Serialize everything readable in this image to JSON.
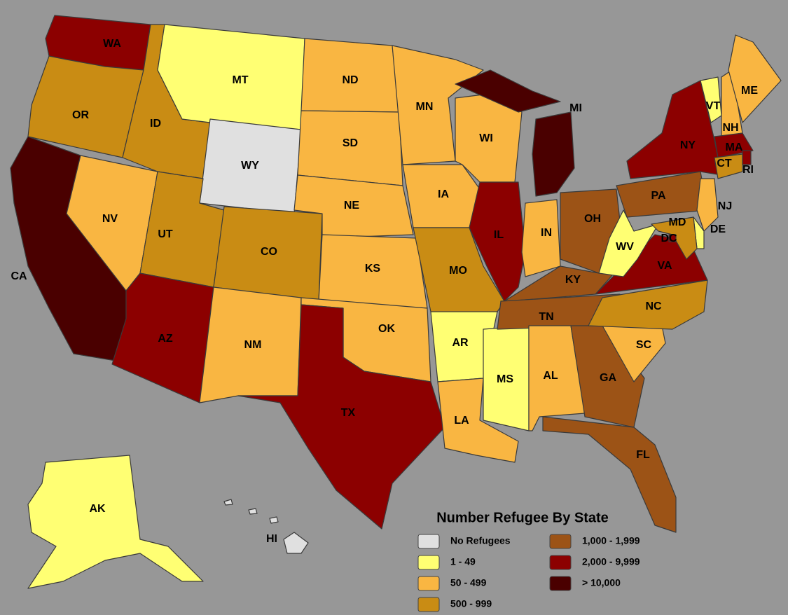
{
  "legend": {
    "title": "Number Refugee By State",
    "items": [
      {
        "label": "No Refugees",
        "color": "#e0e0e0"
      },
      {
        "label": "1 - 49",
        "color": "#ffff73"
      },
      {
        "label": "50 - 499",
        "color": "#f9b642"
      },
      {
        "label": "500 - 999",
        "color": "#c98c14"
      },
      {
        "label": "1,000 - 1,999",
        "color": "#9c5316"
      },
      {
        "label": "2,000 - 9,999",
        "color": "#8c0000"
      },
      {
        "label": "> 10,000",
        "color": "#4a0000"
      }
    ]
  },
  "states": [
    {
      "label": "WA",
      "category": 5
    },
    {
      "label": "OR",
      "category": 3
    },
    {
      "label": "CA",
      "category": 6
    },
    {
      "label": "NV",
      "category": 2
    },
    {
      "label": "ID",
      "category": 3
    },
    {
      "label": "MT",
      "category": 1
    },
    {
      "label": "WY",
      "category": 0
    },
    {
      "label": "UT",
      "category": 3
    },
    {
      "label": "CO",
      "category": 3
    },
    {
      "label": "AZ",
      "category": 5
    },
    {
      "label": "NM",
      "category": 2
    },
    {
      "label": "ND",
      "category": 2
    },
    {
      "label": "SD",
      "category": 2
    },
    {
      "label": "NE",
      "category": 2
    },
    {
      "label": "KS",
      "category": 2
    },
    {
      "label": "OK",
      "category": 2
    },
    {
      "label": "TX",
      "category": 5
    },
    {
      "label": "MN",
      "category": 2
    },
    {
      "label": "IA",
      "category": 2
    },
    {
      "label": "MO",
      "category": 3
    },
    {
      "label": "AR",
      "category": 1
    },
    {
      "label": "LA",
      "category": 2
    },
    {
      "label": "MS",
      "category": 1
    },
    {
      "label": "WI",
      "category": 2
    },
    {
      "label": "IL",
      "category": 5
    },
    {
      "label": "MI",
      "category": 6
    },
    {
      "label": "IN",
      "category": 2
    },
    {
      "label": "OH",
      "category": 4
    },
    {
      "label": "KY",
      "category": 4
    },
    {
      "label": "TN",
      "category": 4
    },
    {
      "label": "AL",
      "category": 2
    },
    {
      "label": "GA",
      "category": 4
    },
    {
      "label": "FL",
      "category": 4
    },
    {
      "label": "SC",
      "category": 2
    },
    {
      "label": "NC",
      "category": 3
    },
    {
      "label": "VA",
      "category": 5
    },
    {
      "label": "WV",
      "category": 1
    },
    {
      "label": "PA",
      "category": 4
    },
    {
      "label": "NY",
      "category": 5
    },
    {
      "label": "VT",
      "category": 1
    },
    {
      "label": "NH",
      "category": 2
    },
    {
      "label": "ME",
      "category": 2
    },
    {
      "label": "MA",
      "category": 5
    },
    {
      "label": "RI",
      "category": 5
    },
    {
      "label": "CT",
      "category": 3
    },
    {
      "label": "NJ",
      "category": 2
    },
    {
      "label": "DE",
      "category": 1
    },
    {
      "label": "MD",
      "category": 3
    },
    {
      "label": "DC",
      "category": 5
    },
    {
      "label": "AK",
      "category": 1
    },
    {
      "label": "HI",
      "category": 0
    }
  ]
}
